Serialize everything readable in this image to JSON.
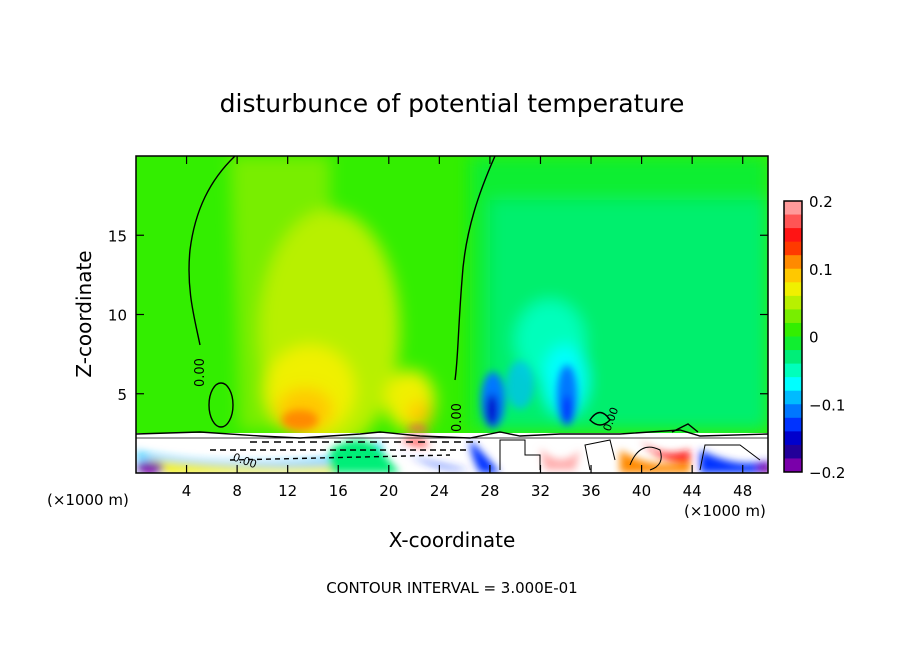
{
  "chart_data": {
    "type": "heatmap",
    "subtype": "filled-contour",
    "title": "disturbunce of potential temperature",
    "xlabel": "X-coordinate",
    "ylabel": "Z-coordinate",
    "x_unit_left": "(×1000 m)",
    "x_unit_right": "(×1000 m)",
    "xlim": [
      0,
      50
    ],
    "ylim": [
      0,
      20
    ],
    "xticks": [
      4,
      8,
      12,
      16,
      20,
      24,
      28,
      32,
      36,
      40,
      44,
      48
    ],
    "yticks": [
      5,
      10,
      15
    ],
    "contour_labels": [
      "0.00",
      "0.00",
      "0.00",
      "0.00"
    ],
    "footer": "CONTOUR INTERVAL = 3.000E-01",
    "colorbar": {
      "range": [
        -0.2,
        0.2
      ],
      "step": 0.02,
      "tick_values": [
        0.2,
        0.1,
        0,
        -0.1,
        -0.2
      ],
      "tick_labels": [
        "0.2",
        "0.1",
        "0",
        "−0.1",
        "−0.2"
      ],
      "colors_top_to_bottom": [
        "#ff9a9a",
        "#ff5555",
        "#ff1414",
        "#ff3a00",
        "#ff8a00",
        "#ffc800",
        "#f0f000",
        "#b8f000",
        "#78ee00",
        "#33ee00",
        "#10ee30",
        "#00ee78",
        "#00ffbb",
        "#00ffff",
        "#00bbff",
        "#0077ff",
        "#0033ff",
        "#0000cc",
        "#220099",
        "#7a00aa"
      ]
    }
  }
}
